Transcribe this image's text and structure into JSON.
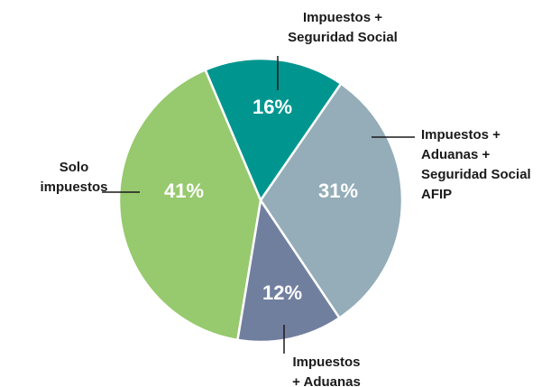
{
  "chart_data": {
    "type": "pie",
    "categories": [
      "Impuestos +\nSeguridad Social",
      "Impuestos +\nAduanas +\nSeguridad Social\nAFIP",
      "Impuestos\n+ Aduanas",
      "Solo\nimpuestos"
    ],
    "values": [
      16,
      31,
      12,
      41
    ],
    "value_labels": [
      "16%",
      "31%",
      "12%",
      "41%"
    ],
    "colors": [
      "#00968f",
      "#94adb8",
      "#717f9f",
      "#97c96e"
    ]
  }
}
